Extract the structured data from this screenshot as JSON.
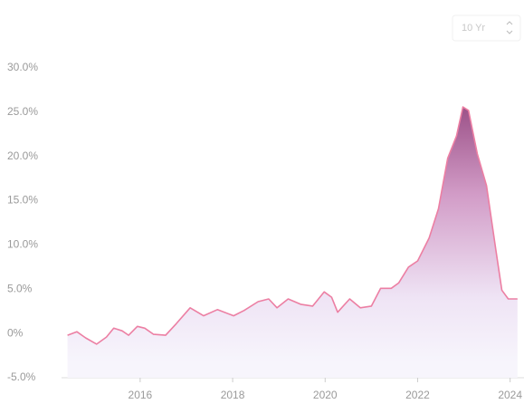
{
  "range_selector": "10 Yr",
  "chart_data": {
    "type": "area",
    "x": [
      2014.43,
      2014.63,
      2014.82,
      2015.06,
      2015.27,
      2015.43,
      2015.61,
      2015.75,
      2015.94,
      2016.1,
      2016.29,
      2016.55,
      2016.78,
      2017.08,
      2017.37,
      2017.67,
      2018.02,
      2018.25,
      2018.55,
      2018.78,
      2018.96,
      2019.2,
      2019.47,
      2019.73,
      2019.98,
      2020.14,
      2020.27,
      2020.53,
      2020.76,
      2021.0,
      2021.2,
      2021.43,
      2021.59,
      2021.8,
      2022.0,
      2022.25,
      2022.45,
      2022.65,
      2022.84,
      2022.98,
      2023.1,
      2023.29,
      2023.49,
      2023.69,
      2023.82,
      2023.96,
      2024.16
    ],
    "values": [
      -0.2,
      0.2,
      -0.5,
      -1.2,
      -0.4,
      0.6,
      0.3,
      -0.2,
      0.8,
      0.6,
      -0.1,
      -0.2,
      1.1,
      2.9,
      2.0,
      2.7,
      2.0,
      2.6,
      3.6,
      3.9,
      2.9,
      3.9,
      3.3,
      3.1,
      4.7,
      4.1,
      2.4,
      3.9,
      2.9,
      3.1,
      5.1,
      5.1,
      5.7,
      7.5,
      8.2,
      10.8,
      14.1,
      19.8,
      22.3,
      25.6,
      25.2,
      20.3,
      16.7,
      9.5,
      4.9,
      3.9,
      3.9
    ],
    "color": "#ec7fa3",
    "xlim": [
      2014.3,
      2024.3
    ],
    "xticks": [
      2016,
      2018,
      2020,
      2022,
      2024
    ],
    "ylim": [
      -5,
      30
    ],
    "yticks": [
      {
        "value": -5,
        "label": "-5.0%"
      },
      {
        "value": 0,
        "label": "0%"
      },
      {
        "value": 5,
        "label": "5.0%"
      },
      {
        "value": 10,
        "label": "10.0%"
      },
      {
        "value": 15,
        "label": "15.0%"
      },
      {
        "value": 20,
        "label": "20.0%"
      },
      {
        "value": 25,
        "label": "25.0%"
      },
      {
        "value": 30,
        "label": "30.0%"
      }
    ]
  }
}
